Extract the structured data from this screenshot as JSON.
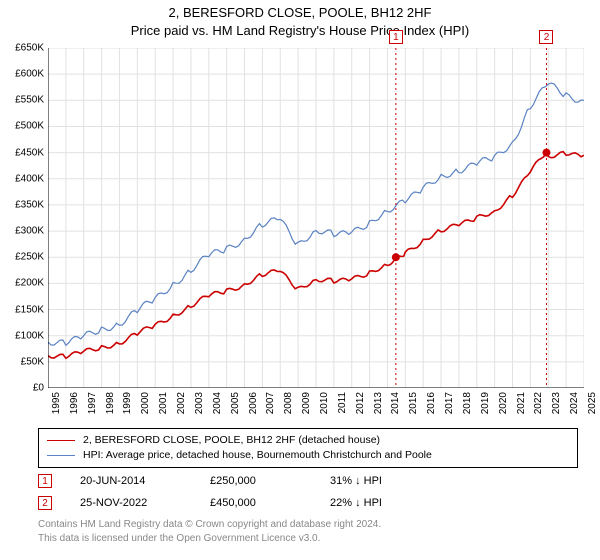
{
  "title_line1": "2, BERESFORD CLOSE, POOLE, BH12 2HF",
  "title_line2": "Price paid vs. HM Land Registry's House Price Index (HPI)",
  "chart": {
    "type": "line",
    "background_color": "#ffffff",
    "grid_color": "#e2e2e2",
    "axis_color": "#000000",
    "y_axis": {
      "min": 0,
      "max": 650000,
      "tick_step": 50000,
      "labels": [
        "£0",
        "£50K",
        "£100K",
        "£150K",
        "£200K",
        "£250K",
        "£300K",
        "£350K",
        "£400K",
        "£450K",
        "£500K",
        "£550K",
        "£600K",
        "£650K"
      ],
      "fontsize": 10
    },
    "x_axis": {
      "min": 1995,
      "max": 2025,
      "tick_step": 1,
      "labels": [
        "1995",
        "1996",
        "1997",
        "1998",
        "1999",
        "2000",
        "2001",
        "2002",
        "2003",
        "2004",
        "2005",
        "2006",
        "2007",
        "2008",
        "2009",
        "2010",
        "2011",
        "2012",
        "2013",
        "2014",
        "2015",
        "2016",
        "2017",
        "2018",
        "2019",
        "2020",
        "2021",
        "2022",
        "2023",
        "2024",
        "2025"
      ],
      "fontsize": 10
    },
    "series": [
      {
        "name": "price_paid",
        "label": "2, BERESFORD CLOSE, POOLE, BH12 2HF (detached house)",
        "color": "#cc0000",
        "line_width": 1.6,
        "x": [
          1995,
          1996,
          1997,
          1998,
          1999,
          2000,
          2001,
          2002,
          2003,
          2004,
          2005,
          2006,
          2007,
          2008,
          2009,
          2010,
          2011,
          2012,
          2013,
          2014,
          2014.47,
          2015,
          2016,
          2017,
          2018,
          2019,
          2020,
          2021,
          2022,
          2022.9,
          2023,
          2024,
          2025
        ],
        "y": [
          62000,
          63000,
          68000,
          76000,
          88000,
          104000,
          118000,
          140000,
          157000,
          175000,
          187000,
          198000,
          215000,
          225000,
          190000,
          205000,
          205000,
          210000,
          218000,
          235000,
          250000,
          260000,
          280000,
          300000,
          315000,
          325000,
          335000,
          370000,
          415000,
          450000,
          440000,
          450000,
          445000
        ]
      },
      {
        "name": "hpi",
        "label": "HPI: Average price, detached house, Bournemouth Christchurch and Poole",
        "color": "#5a82c2",
        "line_width": 1.2,
        "x": [
          1995,
          1996,
          1997,
          1998,
          1999,
          2000,
          2001,
          2002,
          2003,
          2004,
          2005,
          2006,
          2007,
          2008,
          2009,
          2010,
          2011,
          2012,
          2013,
          2014,
          2015,
          2016,
          2017,
          2018,
          2019,
          2020,
          2021,
          2022,
          2023,
          2024,
          2025
        ],
        "y": [
          88000,
          90000,
          97000,
          110000,
          125000,
          148000,
          168000,
          200000,
          225000,
          252000,
          268000,
          285000,
          310000,
          325000,
          275000,
          298000,
          295000,
          300000,
          312000,
          338000,
          362000,
          380000,
          402000,
          418000,
          430000,
          438000,
          470000,
          540000,
          580000,
          560000,
          550000
        ]
      }
    ],
    "sale_markers": [
      {
        "idx": "1",
        "x": 2014.47,
        "y": 250000,
        "line_color": "#cc0000",
        "label_top": true
      },
      {
        "idx": "2",
        "x": 2022.9,
        "y": 450000,
        "line_color": "#cc0000",
        "label_top": true
      }
    ]
  },
  "legend": {
    "border_color": "#000000",
    "items": [
      {
        "color": "#cc0000",
        "width": 1.6,
        "text": "2, BERESFORD CLOSE, POOLE, BH12 2HF (detached house)"
      },
      {
        "color": "#5a82c2",
        "width": 1.2,
        "text": "HPI: Average price, detached house, Bournemouth Christchurch and Poole"
      }
    ]
  },
  "sales": [
    {
      "idx": "1",
      "date": "20-JUN-2014",
      "price": "£250,000",
      "delta": "31% ↓ HPI"
    },
    {
      "idx": "2",
      "date": "25-NOV-2022",
      "price": "£450,000",
      "delta": "22% ↓ HPI"
    }
  ],
  "footer_line1": "Contains HM Land Registry data © Crown copyright and database right 2024.",
  "footer_line2": "This data is licensed under the Open Government Licence v3.0."
}
